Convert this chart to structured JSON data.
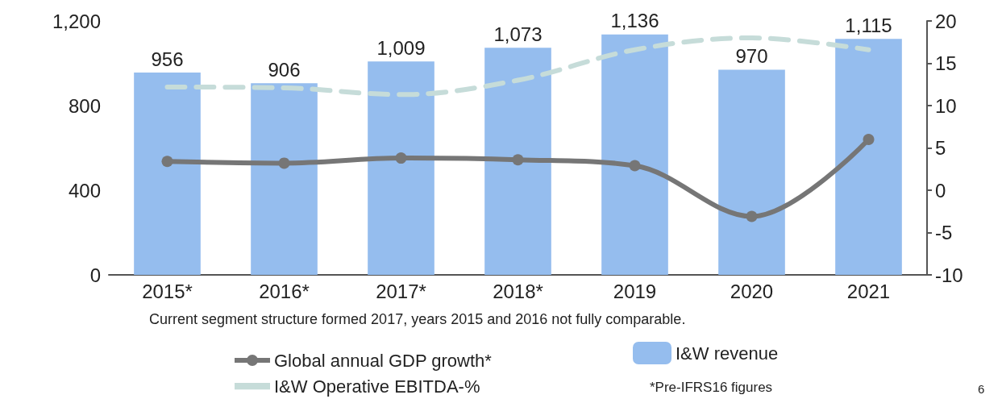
{
  "chart_data": {
    "type": "bar",
    "categories": [
      "2015*",
      "2016*",
      "2017*",
      "2018*",
      "2019",
      "2020",
      "2021"
    ],
    "series": [
      {
        "name": "I&W revenue",
        "type": "bar",
        "color": "#95bdee",
        "values": [
          956,
          906,
          1009,
          1073,
          1136,
          970,
          1115
        ],
        "value_labels": [
          "956",
          "906",
          "1,009",
          "1,073",
          "1,136",
          "970",
          "1,115"
        ]
      },
      {
        "name": "Global annual GDP growth*",
        "type": "line",
        "axis": "y2",
        "color": "#767676",
        "marker": "circle",
        "line_style": "solid",
        "values": [
          3.4,
          3.2,
          3.8,
          3.6,
          2.9,
          -3.1,
          6.0
        ]
      },
      {
        "name": "I&W Operative EBITDA-%",
        "type": "line",
        "axis": "y2",
        "color": "#c6dcd9",
        "marker": "none",
        "line_style": "dashed",
        "values": [
          12.2,
          12.1,
          11.3,
          13.0,
          16.6,
          18.0,
          16.6
        ]
      }
    ],
    "ylim": [
      0,
      1200
    ],
    "yticks": [
      0,
      400,
      800,
      {
        "value": 1200,
        "label": "1,200"
      }
    ],
    "y2lim": [
      -10,
      20
    ],
    "y2ticks": [
      -10,
      -5,
      0,
      5,
      10,
      15,
      20
    ],
    "grid": false,
    "legend": "bottom",
    "annotations": [
      "Current segment structure formed 2017, years 2015 and 2016 not fully comparable.",
      "*Pre-IFRS16 figures",
      "6"
    ]
  }
}
